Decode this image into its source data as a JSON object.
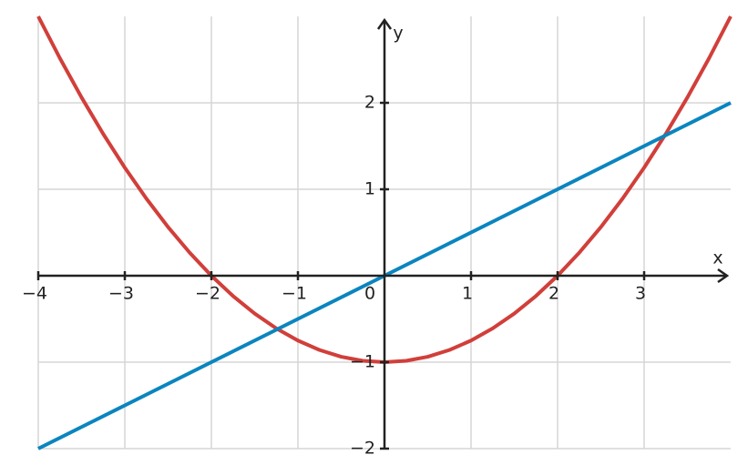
{
  "chart_data": {
    "type": "line",
    "x": [
      -4,
      -3.75,
      -3.5,
      -3.25,
      -3,
      -2.75,
      -2.5,
      -2.25,
      -2,
      -1.75,
      -1.5,
      -1.25,
      -1,
      -0.75,
      -0.5,
      -0.25,
      0,
      0.25,
      0.5,
      0.75,
      1,
      1.25,
      1.5,
      1.75,
      2,
      2.25,
      2.5,
      2.75,
      3,
      3.25,
      3.5,
      3.75,
      4
    ],
    "series": [
      {
        "color": "#d13f3a",
        "values": [
          3,
          2.515625,
          2.0625,
          1.640625,
          1.25,
          0.890625,
          0.5625,
          0.265625,
          0,
          -0.234375,
          -0.4375,
          -0.609375,
          -0.75,
          -0.859375,
          -0.9375,
          -0.984375,
          -1,
          -0.984375,
          -0.9375,
          -0.859375,
          -0.75,
          -0.609375,
          -0.4375,
          -0.234375,
          0,
          0.265625,
          0.5625,
          0.890625,
          1.25,
          1.640625,
          2.0625,
          2.515625,
          3
        ]
      },
      {
        "color": "#0a85bf",
        "values": [
          -2,
          -1.875,
          -1.75,
          -1.625,
          -1.5,
          -1.375,
          -1.25,
          -1.125,
          -1,
          -0.875,
          -0.75,
          -0.625,
          -0.5,
          -0.375,
          -0.25,
          -0.125,
          0,
          0.125,
          0.25,
          0.375,
          0.5,
          0.625,
          0.75,
          0.875,
          1,
          1.125,
          1.25,
          1.375,
          1.5,
          1.625,
          1.75,
          1.875,
          2
        ]
      }
    ],
    "xlabel": "x",
    "ylabel": "y",
    "xlim": [
      -4,
      4
    ],
    "ylim": [
      -2,
      3
    ],
    "xticks": [
      {
        "value": -4,
        "label": "−4"
      },
      {
        "value": -3,
        "label": "−3"
      },
      {
        "value": -2,
        "label": "−2"
      },
      {
        "value": -1,
        "label": "−1"
      },
      0,
      1,
      2,
      3
    ],
    "yticks": [
      {
        "value": -2,
        "label": "−2"
      },
      {
        "value": -1,
        "label": "−1"
      },
      1,
      2
    ],
    "grid": true
  }
}
